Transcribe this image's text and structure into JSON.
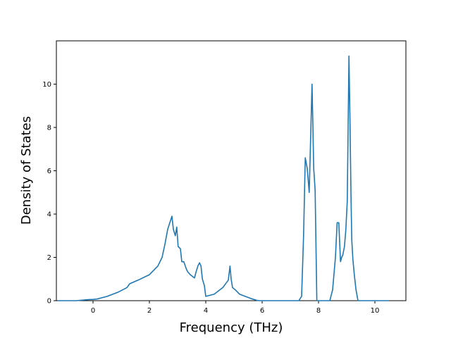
{
  "chart_data": {
    "type": "line",
    "title": "",
    "xlabel": "Frequency (THz)",
    "ylabel": "Density of States",
    "xlim": [
      -1.3,
      11.1
    ],
    "ylim": [
      0,
      12.0
    ],
    "x_ticks": [
      0,
      2,
      4,
      6,
      8,
      10
    ],
    "y_ticks": [
      0,
      2,
      4,
      6,
      8,
      10
    ],
    "grid": false,
    "legend": "none",
    "series": [
      {
        "color": "#1f77b4",
        "x": [
          -1.25,
          -0.6,
          -0.15,
          0.0,
          0.15,
          0.5,
          0.9,
          1.2,
          1.3,
          1.6,
          2.0,
          2.3,
          2.45,
          2.55,
          2.65,
          2.7,
          2.8,
          2.85,
          2.92,
          2.97,
          3.02,
          3.1,
          3.15,
          3.22,
          3.3,
          3.35,
          3.45,
          3.6,
          3.65,
          3.72,
          3.78,
          3.83,
          3.88,
          3.95,
          4.0,
          4.3,
          4.6,
          4.8,
          4.86,
          4.9,
          4.95,
          5.05,
          5.2,
          5.4,
          5.6,
          5.8,
          5.9,
          6.0,
          6.5,
          7.0,
          7.3,
          7.4,
          7.47,
          7.53,
          7.6,
          7.67,
          7.72,
          7.77,
          7.83,
          7.88,
          7.94,
          7.98,
          8.2,
          8.4,
          8.5,
          8.6,
          8.66,
          8.72,
          8.78,
          8.82,
          8.86,
          8.92,
          8.97,
          9.02,
          9.08,
          9.12,
          9.15,
          9.18,
          9.22,
          9.27,
          9.33,
          9.4,
          9.5,
          9.6,
          9.8,
          10.0,
          10.2,
          10.5
        ],
        "y": [
          0,
          0,
          0.05,
          0.06,
          0.08,
          0.2,
          0.4,
          0.6,
          0.78,
          0.95,
          1.2,
          1.6,
          2.0,
          2.6,
          3.3,
          3.5,
          3.9,
          3.3,
          3.0,
          3.4,
          2.5,
          2.4,
          1.8,
          1.8,
          1.5,
          1.35,
          1.2,
          1.05,
          1.3,
          1.6,
          1.75,
          1.6,
          1.0,
          0.7,
          0.2,
          0.3,
          0.6,
          0.95,
          1.6,
          1.0,
          0.6,
          0.5,
          0.3,
          0.2,
          0.1,
          0.02,
          0,
          0,
          0,
          0,
          0,
          0.2,
          3.0,
          6.6,
          6.1,
          5.0,
          7.5,
          10.0,
          6.1,
          5.1,
          0,
          0,
          0,
          0,
          0.5,
          2.0,
          3.6,
          3.6,
          1.8,
          2.0,
          2.1,
          2.5,
          3.3,
          4.6,
          11.3,
          8.0,
          5.0,
          2.8,
          1.9,
          1.2,
          0.5,
          0,
          0,
          0,
          0,
          0,
          0,
          0
        ]
      }
    ]
  }
}
